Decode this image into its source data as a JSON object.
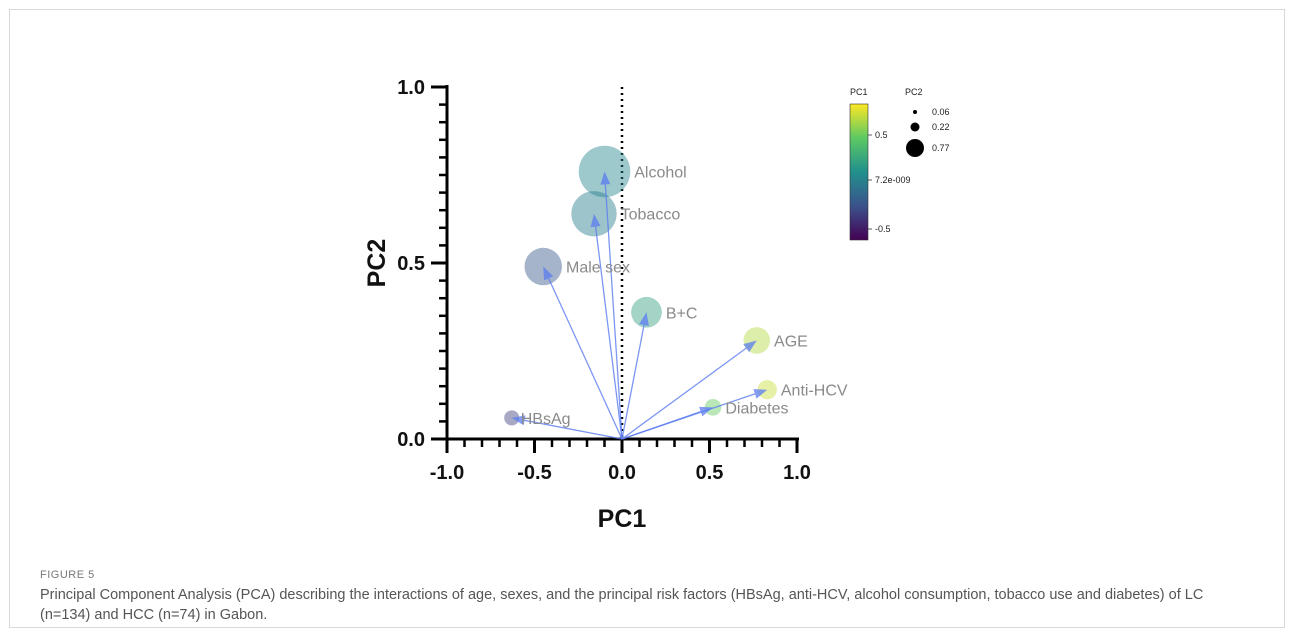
{
  "figure": {
    "label": "FIGURE 5",
    "caption": "Principal Component Analysis (PCA) describing the interactions of age, sexes, and the principal risk factors (HBsAg, anti-HCV, alcohol consumption, tobacco use and diabetes) of LC (n=134) and HCC (n=74) in Gabon."
  },
  "chart_data": {
    "type": "scatter",
    "xlabel": "PC1",
    "ylabel": "PC2",
    "xlim": [
      -1.0,
      1.0
    ],
    "ylim": [
      0.0,
      1.0
    ],
    "xticks": [
      "-1.0",
      "-0.5",
      "0.0",
      "0.5",
      "1.0"
    ],
    "yticks": [
      "0.0",
      "0.5",
      "1.0"
    ],
    "zero_line": "dotted vertical at x=0",
    "points": [
      {
        "label": "Alcohol",
        "x": -0.1,
        "y": 0.76
      },
      {
        "label": "Tobacco",
        "x": -0.16,
        "y": 0.64
      },
      {
        "label": "Male sex",
        "x": -0.45,
        "y": 0.49
      },
      {
        "label": "B+C",
        "x": 0.14,
        "y": 0.36
      },
      {
        "label": "AGE",
        "x": 0.77,
        "y": 0.28
      },
      {
        "label": "Anti-HCV",
        "x": 0.83,
        "y": 0.14
      },
      {
        "label": "Diabetes",
        "x": 0.52,
        "y": 0.09
      },
      {
        "label": "HBsAg",
        "x": -0.63,
        "y": 0.06
      }
    ],
    "color_legend": {
      "title": "PC1",
      "ticks": [
        "0.5",
        "7.2e-009",
        "-0.5"
      ],
      "colormap": "viridis"
    },
    "size_legend": {
      "title": "PC2",
      "entries": [
        "0.06",
        "0.22",
        "0.77"
      ]
    },
    "arrow_color": "#5b7cf0",
    "grid": false
  }
}
